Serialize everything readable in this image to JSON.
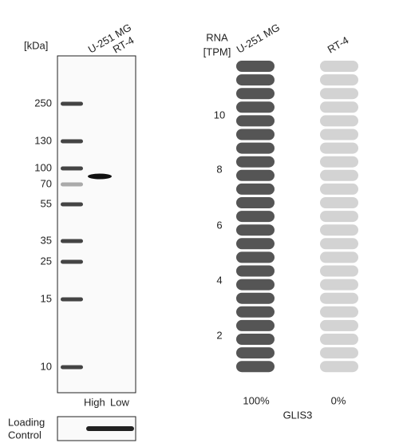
{
  "blot": {
    "unit_label": "[kDa]",
    "lanes": [
      "U-251 MG",
      "RT-4"
    ],
    "markers": [
      "250",
      "130",
      "100",
      "70",
      "55",
      "35",
      "25",
      "15",
      "10"
    ],
    "levels": [
      "High",
      "Low"
    ],
    "loading_control": [
      "Loading",
      "Control"
    ]
  },
  "rna": {
    "axis_label": [
      "RNA",
      "[TPM]"
    ],
    "samples": [
      "U-251 MG",
      "RT-4"
    ],
    "ticks": [
      "10",
      "8",
      "6",
      "4",
      "2"
    ],
    "percentages": [
      "100%",
      "0%"
    ],
    "gene": "GLIS3"
  }
}
